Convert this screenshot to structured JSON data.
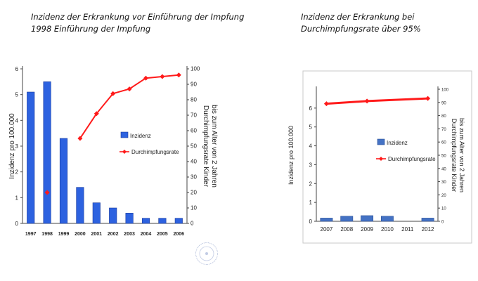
{
  "titles": {
    "left": [
      "Inzidenz der Erkrankung vor Einführung der Impfung",
      "1998 Einführung der Impfung"
    ],
    "right": [
      "Inzidenz der Erkrankung bei",
      "Durchimpfungsrate über 95%"
    ]
  },
  "chart_data": [
    {
      "type": "bar",
      "categories": [
        "1997",
        "1998",
        "1999",
        "2000",
        "2001",
        "2002",
        "2003",
        "2004",
        "2005",
        "2006"
      ],
      "series": [
        {
          "name": "Inzidenz",
          "kind": "bar",
          "axis": "left",
          "color": "#2d62e0",
          "values": [
            5.1,
            5.5,
            3.3,
            1.4,
            0.8,
            0.6,
            0.4,
            0.2,
            0.2,
            0.2
          ]
        },
        {
          "name": "Durchimpfungsrate",
          "kind": "line",
          "axis": "right",
          "color": "#ff1a1a",
          "values": [
            null,
            20,
            null,
            55,
            71,
            84,
            87,
            94,
            95,
            96
          ]
        }
      ],
      "ylabel": "Inzidenz pro 100.000",
      "y2label": [
        "Durchimpfungsrate Kinder",
        "bis zum Alter von 2 Jahren"
      ],
      "ylim": [
        0,
        6
      ],
      "y2lim": [
        0,
        100
      ],
      "yticks": [
        0,
        1,
        2,
        3,
        4,
        5,
        6
      ],
      "y2ticks": [
        0,
        10,
        20,
        30,
        40,
        50,
        60,
        70,
        80,
        90,
        100
      ],
      "legend": "center-right"
    },
    {
      "type": "bar",
      "categories": [
        "2007",
        "2008",
        "2009",
        "2010",
        "2011",
        "2012"
      ],
      "series": [
        {
          "name": "Inzidenz",
          "kind": "bar",
          "axis": "left",
          "color": "#4472c4",
          "values": [
            0.17,
            0.27,
            0.3,
            0.27,
            0,
            0.17
          ]
        },
        {
          "name": "Durchimpfungsrate",
          "kind": "line",
          "axis": "right",
          "color": "#ff1a1a",
          "values": [
            89,
            null,
            91,
            null,
            null,
            93
          ]
        }
      ],
      "ylabel": "Inzidenz pro 100.000",
      "y2label": [
        "Durchimpfungsrate Kinder",
        "bis zum Alter von 2 Jahren"
      ],
      "ylim": [
        0,
        7
      ],
      "y2lim": [
        0,
        100
      ],
      "yticks": [
        0,
        1,
        2,
        3,
        4,
        5,
        6
      ],
      "y2ticks": [
        0,
        10,
        20,
        30,
        40,
        50,
        60,
        70,
        80,
        90,
        100
      ],
      "legend": "center-right"
    }
  ]
}
